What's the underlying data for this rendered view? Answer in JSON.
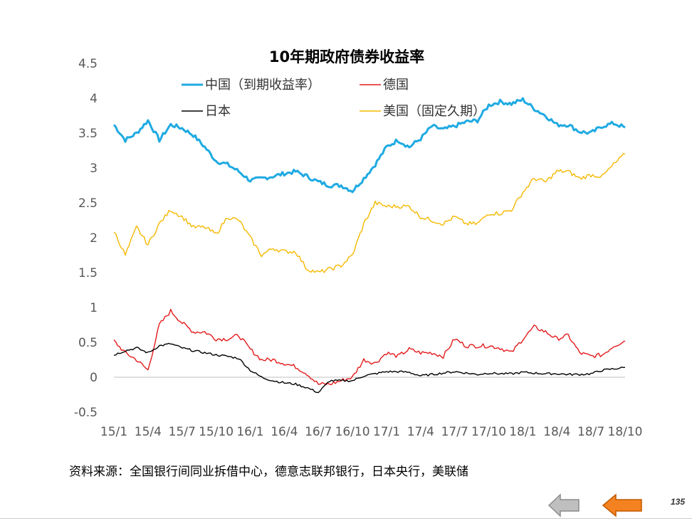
{
  "chart_data": {
    "type": "line",
    "title": "10年期政府债券收益率",
    "ylim": [
      -0.5,
      4.5
    ],
    "yticks": [
      "4.5",
      "4",
      "3.5",
      "3",
      "2.5",
      "2",
      "1.5",
      "1",
      "0.5",
      "0",
      "-0.5"
    ],
    "xticks": [
      "15/1",
      "15/4",
      "15/7",
      "15/10",
      "16/1",
      "16/4",
      "16/7",
      "16/10",
      "17/1",
      "17/4",
      "17/7",
      "17/10",
      "18/1",
      "18/4",
      "18/7",
      "18/10"
    ],
    "grid": false,
    "legend_position": "top",
    "series": [
      {
        "name": "中国（到期收益率）",
        "color": "#1FAAE2",
        "x": [
          "15/1",
          "15/2",
          "15/3",
          "15/4",
          "15/5",
          "15/6",
          "15/7",
          "15/8",
          "15/9",
          "15/10",
          "15/11",
          "15/12",
          "16/1",
          "16/2",
          "16/3",
          "16/4",
          "16/5",
          "16/6",
          "16/7",
          "16/8",
          "16/9",
          "16/10",
          "16/11",
          "16/12",
          "17/1",
          "17/2",
          "17/3",
          "17/4",
          "17/5",
          "17/6",
          "17/7",
          "17/8",
          "17/9",
          "17/10",
          "17/11",
          "17/12",
          "18/1",
          "18/2",
          "18/3",
          "18/4",
          "18/5",
          "18/6",
          "18/7",
          "18/8",
          "18/9",
          "18/10"
        ],
        "values": [
          3.62,
          3.4,
          3.5,
          3.68,
          3.4,
          3.62,
          3.57,
          3.47,
          3.3,
          3.1,
          3.05,
          2.95,
          2.82,
          2.85,
          2.88,
          2.92,
          2.95,
          2.88,
          2.8,
          2.75,
          2.75,
          2.67,
          2.85,
          3.05,
          3.3,
          3.4,
          3.3,
          3.42,
          3.6,
          3.55,
          3.6,
          3.66,
          3.68,
          3.9,
          3.95,
          3.92,
          3.98,
          3.85,
          3.75,
          3.62,
          3.62,
          3.52,
          3.5,
          3.6,
          3.64,
          3.58
        ]
      },
      {
        "name": "德国",
        "color": "#E41A1C",
        "x": [
          "15/1",
          "15/2",
          "15/3",
          "15/4",
          "15/5",
          "15/6",
          "15/7",
          "15/8",
          "15/9",
          "15/10",
          "15/11",
          "15/12",
          "16/1",
          "16/2",
          "16/3",
          "16/4",
          "16/5",
          "16/6",
          "16/7",
          "16/8",
          "16/9",
          "16/10",
          "16/11",
          "16/12",
          "17/1",
          "17/2",
          "17/3",
          "17/4",
          "17/5",
          "17/6",
          "17/7",
          "17/8",
          "17/9",
          "17/10",
          "17/11",
          "17/12",
          "18/1",
          "18/2",
          "18/3",
          "18/4",
          "18/5",
          "18/6",
          "18/7",
          "18/8",
          "18/9",
          "18/10"
        ],
        "values": [
          0.52,
          0.35,
          0.25,
          0.1,
          0.75,
          0.95,
          0.78,
          0.65,
          0.65,
          0.55,
          0.55,
          0.6,
          0.4,
          0.25,
          0.25,
          0.2,
          0.15,
          0.05,
          -0.1,
          -0.1,
          -0.05,
          0.0,
          0.25,
          0.2,
          0.35,
          0.3,
          0.4,
          0.35,
          0.35,
          0.3,
          0.55,
          0.45,
          0.45,
          0.45,
          0.42,
          0.35,
          0.55,
          0.72,
          0.65,
          0.55,
          0.6,
          0.35,
          0.3,
          0.32,
          0.45,
          0.52
        ]
      },
      {
        "name": "日本",
        "color": "#000000",
        "x": [
          "15/1",
          "15/2",
          "15/3",
          "15/4",
          "15/5",
          "15/6",
          "15/7",
          "15/8",
          "15/9",
          "15/10",
          "15/11",
          "15/12",
          "16/1",
          "16/2",
          "16/3",
          "16/4",
          "16/5",
          "16/6",
          "16/7",
          "16/8",
          "16/9",
          "16/10",
          "16/11",
          "16/12",
          "17/1",
          "17/2",
          "17/3",
          "17/4",
          "17/5",
          "17/6",
          "17/7",
          "17/8",
          "17/9",
          "17/10",
          "17/11",
          "17/12",
          "18/1",
          "18/2",
          "18/3",
          "18/4",
          "18/5",
          "18/6",
          "18/7",
          "18/8",
          "18/9",
          "18/10"
        ],
        "values": [
          0.32,
          0.38,
          0.42,
          0.35,
          0.45,
          0.48,
          0.42,
          0.38,
          0.35,
          0.32,
          0.3,
          0.27,
          0.1,
          0.0,
          -0.05,
          -0.08,
          -0.1,
          -0.15,
          -0.22,
          -0.05,
          -0.05,
          -0.05,
          0.02,
          0.05,
          0.08,
          0.08,
          0.07,
          0.02,
          0.04,
          0.06,
          0.08,
          0.06,
          0.04,
          0.06,
          0.05,
          0.05,
          0.07,
          0.06,
          0.05,
          0.05,
          0.04,
          0.04,
          0.05,
          0.1,
          0.12,
          0.14
        ]
      },
      {
        "name": "美国（固定久期）",
        "color": "#F5B800",
        "x": [
          "15/1",
          "15/2",
          "15/3",
          "15/4",
          "15/5",
          "15/6",
          "15/7",
          "15/8",
          "15/9",
          "15/10",
          "15/11",
          "15/12",
          "16/1",
          "16/2",
          "16/3",
          "16/4",
          "16/5",
          "16/6",
          "16/7",
          "16/8",
          "16/9",
          "16/10",
          "16/11",
          "16/12",
          "17/1",
          "17/2",
          "17/3",
          "17/4",
          "17/5",
          "17/6",
          "17/7",
          "17/8",
          "17/9",
          "17/10",
          "17/11",
          "17/12",
          "18/1",
          "18/2",
          "18/3",
          "18/4",
          "18/5",
          "18/6",
          "18/7",
          "18/8",
          "18/9",
          "18/10"
        ],
        "values": [
          2.1,
          1.75,
          2.15,
          1.9,
          2.2,
          2.4,
          2.3,
          2.15,
          2.15,
          2.05,
          2.3,
          2.25,
          2.0,
          1.75,
          1.85,
          1.8,
          1.8,
          1.55,
          1.5,
          1.55,
          1.6,
          1.75,
          2.2,
          2.5,
          2.45,
          2.45,
          2.45,
          2.3,
          2.25,
          2.2,
          2.3,
          2.2,
          2.2,
          2.35,
          2.35,
          2.4,
          2.65,
          2.85,
          2.8,
          2.95,
          2.95,
          2.85,
          2.9,
          2.88,
          3.05,
          3.2
        ]
      }
    ],
    "source_note": "资料来源：全国银行间同业拆借中心，德意志联邦银行，日本央行，美联储"
  },
  "footer": {
    "page_number": "135"
  }
}
